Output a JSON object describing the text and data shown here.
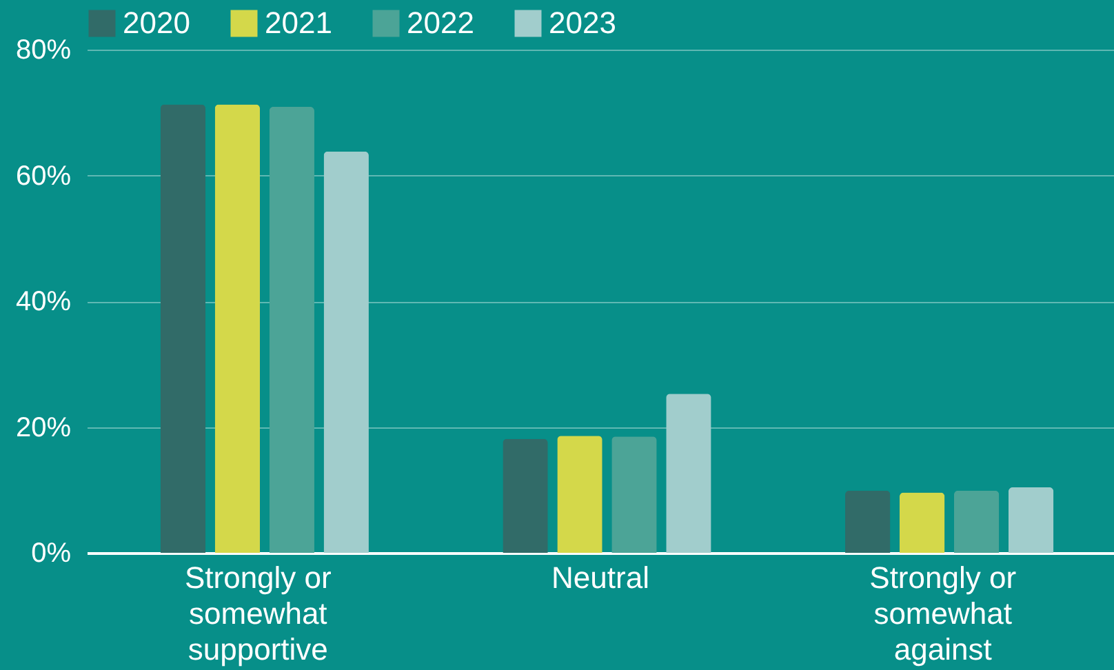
{
  "chart_data": {
    "type": "bar",
    "categories": [
      "Strongly or somewhat supportive",
      "Neutral",
      "Strongly or somewhat against"
    ],
    "series": [
      {
        "name": "2020",
        "color": "#316b68",
        "values": [
          71.3,
          18.1,
          9.9
        ]
      },
      {
        "name": "2021",
        "color": "#d4d84a",
        "values": [
          71.3,
          18.6,
          9.6
        ]
      },
      {
        "name": "2022",
        "color": "#4ca497",
        "values": [
          70.9,
          18.5,
          9.9
        ]
      },
      {
        "name": "2023",
        "color": "#a1cdcc",
        "values": [
          63.8,
          25.3,
          10.4
        ]
      }
    ],
    "ylim": [
      0,
      80
    ],
    "yticks": [
      {
        "value": 0,
        "label": "0%"
      },
      {
        "value": 20,
        "label": "20%"
      },
      {
        "value": 40,
        "label": "40%"
      },
      {
        "value": 60,
        "label": "60%"
      },
      {
        "value": 80,
        "label": "80%"
      }
    ],
    "grid": "y",
    "legend": "top"
  }
}
